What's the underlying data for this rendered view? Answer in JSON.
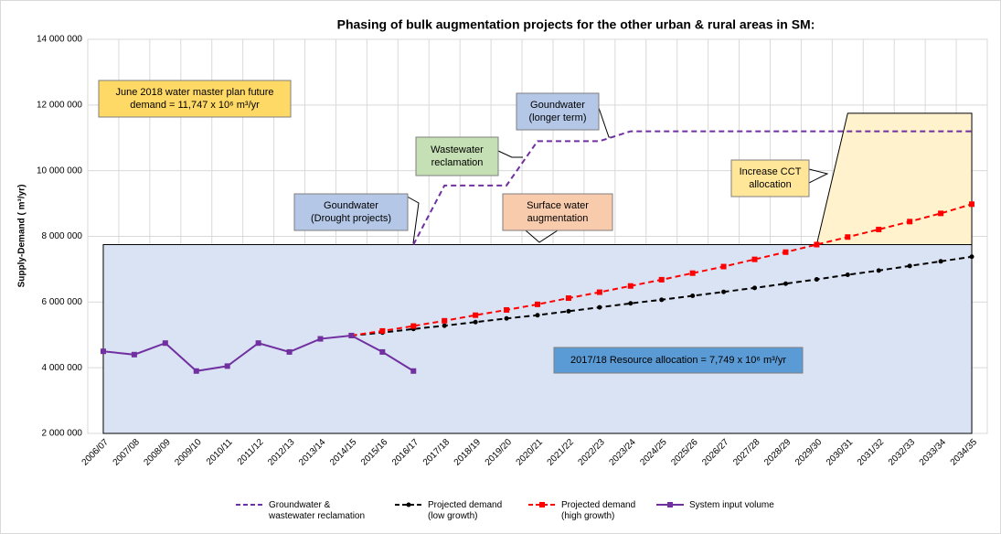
{
  "chart_data": {
    "type": "line",
    "title": "Phasing of bulk augmentation projects for the other urban & rural areas in SM:",
    "ylabel": "Supply-Demand ( m³/yr)",
    "categories": [
      "2006/07",
      "2007/08",
      "2008/09",
      "2009/10",
      "2010/11",
      "2011/12",
      "2012/13",
      "2013/14",
      "2014/15",
      "2015/16",
      "2016/17",
      "2017/18",
      "2018/19",
      "2019/20",
      "2020/21",
      "2021/22",
      "2022/23",
      "2023/24",
      "2024/25",
      "2025/26",
      "2026/27",
      "2027/28",
      "2028/29",
      "2029/30",
      "2030/31",
      "2031/32",
      "2032/33",
      "2033/34",
      "2034/35"
    ],
    "series": [
      {
        "name": "Groundwater &\nwastewater reclamation",
        "color": "#7030a0",
        "dash": true,
        "marker": "none",
        "values": [
          null,
          null,
          null,
          null,
          null,
          null,
          null,
          null,
          null,
          null,
          7750000,
          9550000,
          9550000,
          9550000,
          10900000,
          10900000,
          10900000,
          11200000,
          11200000,
          11200000,
          11200000,
          11200000,
          11200000,
          11200000,
          11200000,
          11200000,
          11200000,
          11200000,
          11200000
        ]
      },
      {
        "name": "Projected demand\n(low growth)",
        "color": "#000000",
        "dash": true,
        "marker": "dot",
        "values": [
          null,
          null,
          null,
          null,
          null,
          null,
          null,
          null,
          4980000,
          5070000,
          5180000,
          5280000,
          5390000,
          5500000,
          5600000,
          5720000,
          5840000,
          5960000,
          6070000,
          6190000,
          6310000,
          6430000,
          6560000,
          6690000,
          6830000,
          6960000,
          7100000,
          7240000,
          7380000
        ]
      },
      {
        "name": "Projected demand\n(high growth)",
        "color": "#ff0000",
        "dash": true,
        "marker": "square",
        "values": [
          null,
          null,
          null,
          null,
          null,
          null,
          null,
          null,
          4980000,
          5120000,
          5270000,
          5430000,
          5600000,
          5760000,
          5930000,
          6120000,
          6300000,
          6490000,
          6680000,
          6880000,
          7080000,
          7300000,
          7520000,
          7750000,
          7980000,
          8210000,
          8450000,
          8700000,
          8980000
        ]
      },
      {
        "name": "System input volume",
        "color": "#7030a0",
        "dash": false,
        "marker": "square",
        "values": [
          4500000,
          4400000,
          4750000,
          3900000,
          4050000,
          4750000,
          4480000,
          4880000,
          4980000,
          4480000,
          3900000,
          null,
          null,
          null,
          null,
          null,
          null,
          null,
          null,
          null,
          null,
          null,
          null,
          null,
          null,
          null,
          null,
          null,
          null
        ]
      }
    ],
    "resource_allocation": 7749000,
    "future_demand": 11747000,
    "ylim": [
      2000000,
      14000000
    ],
    "yticks": [
      {
        "value": 2000000,
        "label": "2 000 000"
      },
      {
        "value": 4000000,
        "label": "4 000 000"
      },
      {
        "value": 6000000,
        "label": "6 000 000"
      },
      {
        "value": 8000000,
        "label": "8 000 000"
      },
      {
        "value": 10000000,
        "label": "10 000 000"
      },
      {
        "value": 12000000,
        "label": "12 000 000"
      },
      {
        "value": 14000000,
        "label": "14 000 000"
      }
    ],
    "grid": true,
    "annotations": [
      {
        "lines": [
          "June 2018 water master plan future",
          "demand = 11,747 x 10⁶ m³/yr"
        ]
      },
      {
        "lines": [
          "Goundwater",
          "(Drought projects)"
        ]
      },
      {
        "lines": [
          "Wastewater",
          "reclamation"
        ]
      },
      {
        "lines": [
          "Goundwater",
          "(longer term)"
        ]
      },
      {
        "lines": [
          "Surface water",
          "augmentation"
        ]
      },
      {
        "lines": [
          "Increase CCT",
          "allocation"
        ]
      },
      {
        "lines": [
          "2017/18 Resource allocation = 7,749 x 10⁶ m³/yr"
        ]
      }
    ]
  }
}
